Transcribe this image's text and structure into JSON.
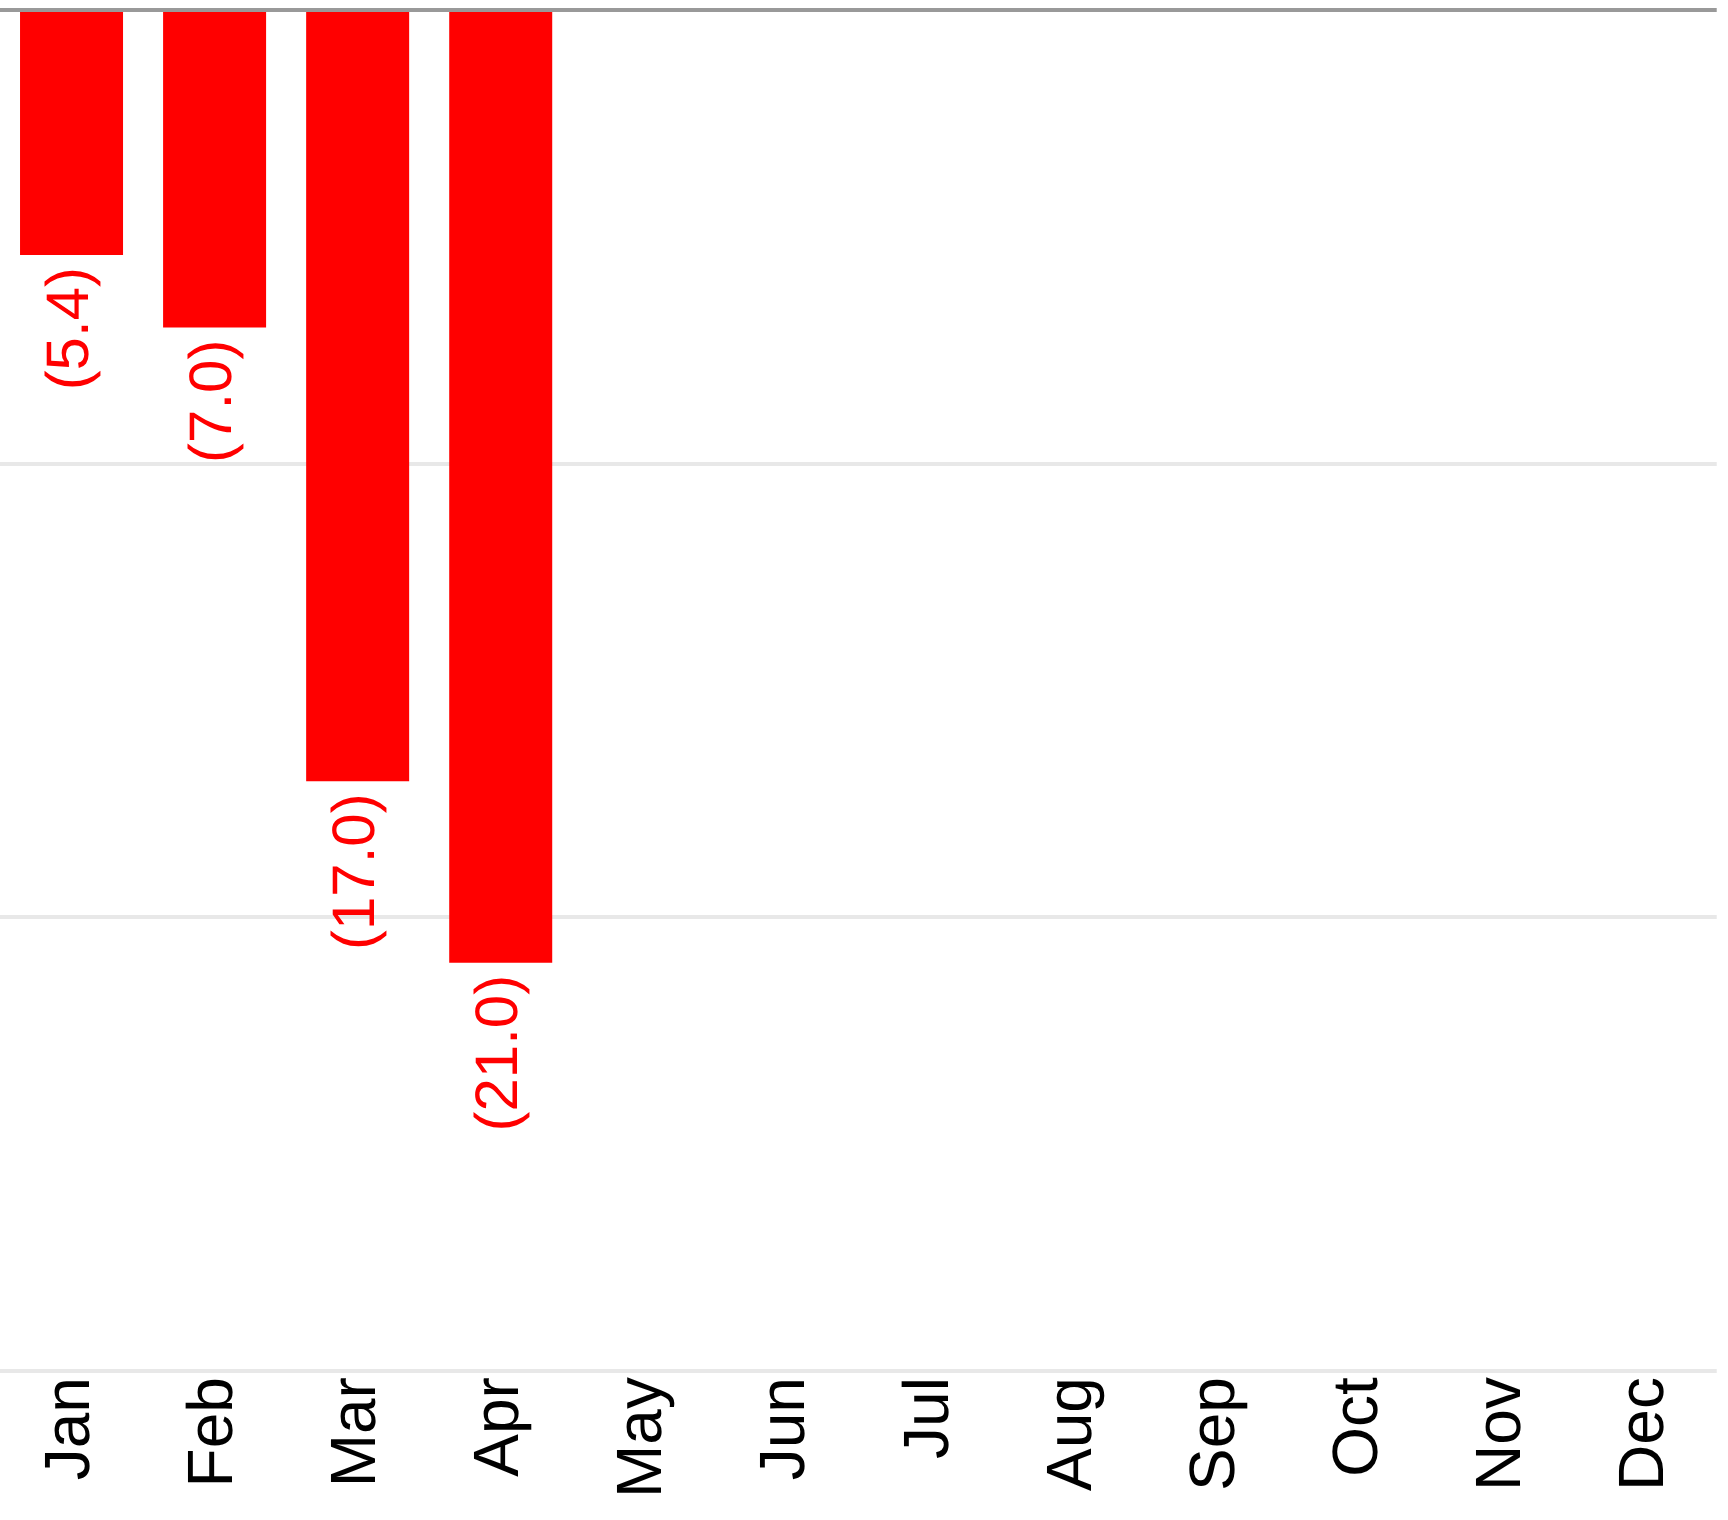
{
  "chart_data": {
    "type": "bar",
    "categories": [
      "Jan",
      "Feb",
      "Mar",
      "Apr",
      "May",
      "Jun",
      "Jul",
      "Aug",
      "Sep",
      "Oct",
      "Nov",
      "Dec"
    ],
    "values": [
      -5.4,
      -7.0,
      -17.0,
      -21.0,
      null,
      null,
      null,
      null,
      null,
      null,
      null,
      null
    ],
    "value_labels": [
      "(5.4)",
      "(7.0)",
      "(17.0)",
      "(21.0)",
      null,
      null,
      null,
      null,
      null,
      null,
      null,
      null
    ],
    "color": "#ff0000",
    "ylim": [
      -30,
      0
    ],
    "yticks": [
      {
        "value": -30,
        "label": null
      },
      {
        "value": -20,
        "label": null
      },
      {
        "value": -10,
        "label": null
      },
      {
        "value": 0,
        "label": null
      }
    ],
    "tick_labels": "x",
    "grid": "y",
    "legend": false
  }
}
